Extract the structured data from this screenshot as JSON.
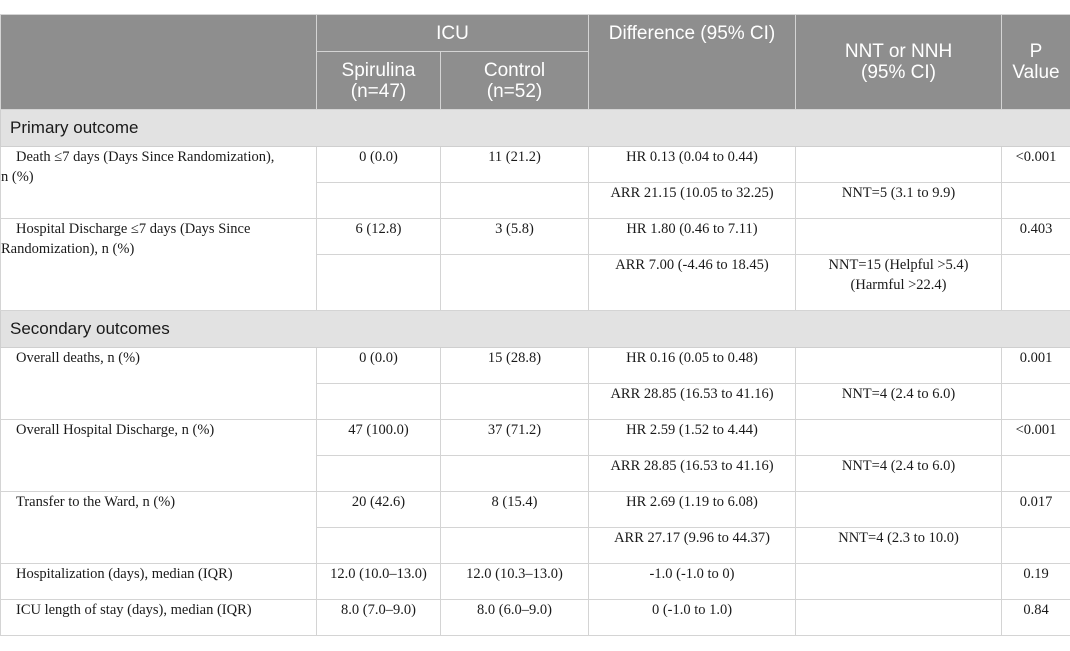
{
  "header": {
    "icu": "ICU",
    "spirulina": "Spirulina",
    "spirulina_n": "(n=47)",
    "control": "Control",
    "control_n": "(n=52)",
    "difference": "Difference (95% CI)",
    "nnt_line1": "NNT or NNH",
    "nnt_line2": "(95% CI)",
    "p_line1": "P",
    "p_line2": "Value"
  },
  "sections": {
    "primary": "Primary outcome",
    "secondary": "Secondary outcomes"
  },
  "rows": {
    "death7": {
      "label_line1": "Death ≤7 days (Days Since Randomization),",
      "label_line2": "n (%)",
      "spirulina": "0 (0.0)",
      "control": "11 (21.2)",
      "hr": "HR 0.13 (0.04 to 0.44)",
      "p": "<0.001",
      "arr": "ARR 21.15 (10.05 to 32.25)",
      "nnt": "NNT=5 (3.1 to 9.9)"
    },
    "discharge7": {
      "label_line1": "Hospital Discharge ≤7 days (Days Since",
      "label_line2": "Randomization), n (%)",
      "spirulina": "6 (12.8)",
      "control": "3 (5.8)",
      "hr": "HR 1.80 (0.46 to 7.11)",
      "p": "0.403",
      "arr": "ARR 7.00 (-4.46 to 18.45)",
      "nnt_line1": "NNT=15 (Helpful >5.4)",
      "nnt_line2": "(Harmful >22.4)"
    },
    "overall_deaths": {
      "label": "Overall deaths, n (%)",
      "spirulina": "0 (0.0)",
      "control": "15 (28.8)",
      "hr": "HR 0.16 (0.05 to 0.48)",
      "p": "0.001",
      "arr": "ARR 28.85 (16.53 to 41.16)",
      "nnt": "NNT=4 (2.4 to 6.0)"
    },
    "overall_discharge": {
      "label": "Overall Hospital Discharge, n (%)",
      "spirulina": "47 (100.0)",
      "control": "37 (71.2)",
      "hr": "HR 2.59 (1.52 to 4.44)",
      "p": "<0.001",
      "arr": "ARR 28.85 (16.53 to 41.16)",
      "nnt": "NNT=4 (2.4 to 6.0)"
    },
    "transfer": {
      "label": "Transfer to the Ward, n (%)",
      "spirulina": "20 (42.6)",
      "control": "8 (15.4)",
      "hr": "HR 2.69 (1.19 to 6.08)",
      "p": "0.017",
      "arr": "ARR 27.17 (9.96 to 44.37)",
      "nnt": "NNT=4 (2.3 to 10.0)"
    },
    "hospitalization": {
      "label": "Hospitalization (days), median (IQR)",
      "spirulina": "12.0 (10.0–13.0)",
      "control": "12.0 (10.3–13.0)",
      "diff": "-1.0 (-1.0 to 0)",
      "p": "0.19"
    },
    "icu_los": {
      "label": "ICU length of stay (days), median (IQR)",
      "spirulina": "8.0 (7.0–9.0)",
      "control": "8.0 (6.0–9.0)",
      "diff": "0 (-1.0 to 1.0)",
      "p": "0.84"
    }
  }
}
